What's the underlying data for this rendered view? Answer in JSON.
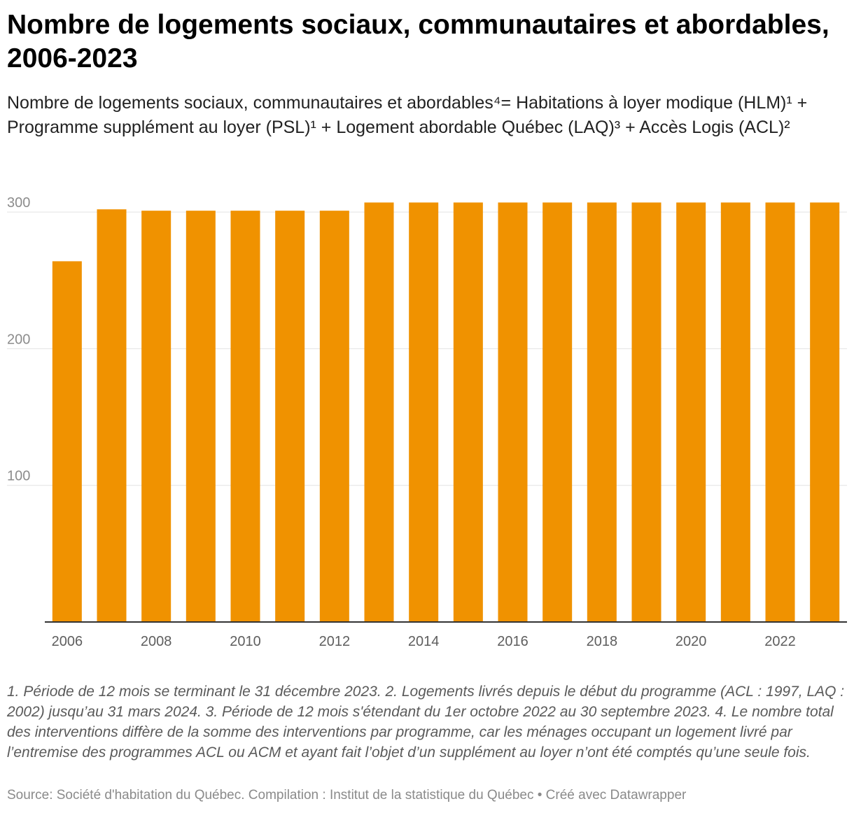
{
  "header": {
    "title": "Nombre de logements sociaux, communautaires et abordables, 2006-2023",
    "subtitle": "Nombre de logements sociaux, communautaires et abordables⁴= Habitations à loyer modique (HLM)¹ + Programme supplément au loyer (PSL)¹ + Logement abordable Québec (LAQ)³ + Accès Logis (ACL)²"
  },
  "footer": {
    "notes": "1. Période de 12 mois se terminant le 31 décembre 2023. 2. Logements livrés depuis le début du programme (ACL : 1997, LAQ : 2002) jusqu’au 31 mars 2024. 3. Période de 12 mois s'étendant du 1er octobre 2022 au 30 septembre 2023. 4. Le nombre total des interventions diffère de la somme des interventions par programme, car les ménages occupant un logement livré par l’entremise des programmes ACL ou ACM et ayant fait l’objet d’un supplément au loyer n’ont été comptés qu’une seule fois.",
    "source": "Source: Société d'habitation du Québec. Compilation : Institut de la statistique du Québec • Créé avec Datawrapper"
  },
  "chart_data": {
    "type": "bar",
    "categories": [
      "2006",
      "2007",
      "2008",
      "2009",
      "2010",
      "2011",
      "2012",
      "2013",
      "2014",
      "2015",
      "2016",
      "2017",
      "2018",
      "2019",
      "2020",
      "2021",
      "2022",
      "2023"
    ],
    "values": [
      264,
      302,
      301,
      301,
      301,
      301,
      301,
      307,
      307,
      307,
      307,
      307,
      307,
      307,
      307,
      307,
      307,
      307
    ],
    "x_tick_labels": [
      "2006",
      "2008",
      "2010",
      "2012",
      "2014",
      "2016",
      "2018",
      "2020",
      "2022"
    ],
    "y_ticks": [
      100,
      200,
      300
    ],
    "ylim": [
      0,
      320
    ],
    "grid": true,
    "bar_color": "#f09200",
    "gridline_color": "#e3e3e3",
    "axis_color": "#333333",
    "tick_label_color": "#8c8c8c"
  }
}
